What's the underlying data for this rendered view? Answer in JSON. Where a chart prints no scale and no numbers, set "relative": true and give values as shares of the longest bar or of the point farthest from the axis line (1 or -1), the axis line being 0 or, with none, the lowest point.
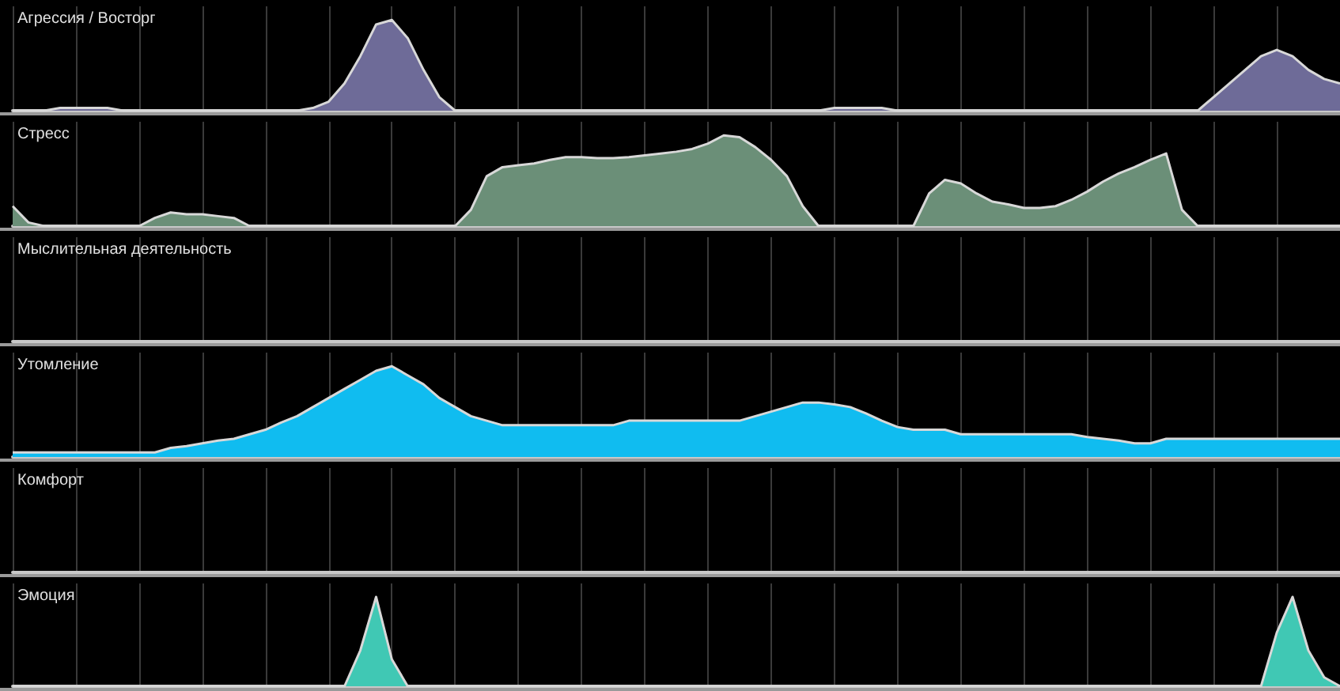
{
  "chart_data": [
    {
      "type": "area",
      "title": "Агрессия / Восторг",
      "relative": true,
      "grid": "x",
      "categories": [
        null,
        null,
        null,
        null,
        null,
        null,
        null,
        null,
        null,
        null,
        null,
        null,
        null,
        null,
        null,
        null,
        null,
        null,
        null,
        null,
        null,
        null,
        null,
        null,
        null,
        null,
        null,
        null,
        null,
        null,
        null,
        null,
        null,
        null,
        null,
        null,
        null,
        null,
        null,
        null,
        null,
        null,
        null,
        null,
        null,
        null,
        null,
        null,
        null,
        null,
        null,
        null,
        null,
        null,
        null,
        null,
        null,
        null,
        null,
        null,
        null,
        null,
        null,
        null,
        null,
        null,
        null,
        null,
        null,
        null,
        null,
        null,
        null,
        null,
        null,
        null,
        null,
        null,
        null,
        null,
        null,
        null,
        null,
        null,
        null
      ],
      "series": [
        {
          "color": "#6e6b98",
          "values": [
            0,
            0,
            0,
            0.03,
            0.03,
            0.03,
            0.03,
            0,
            0,
            0,
            0,
            0,
            0,
            0,
            0,
            0,
            0,
            0,
            0,
            0.03,
            0.1,
            0.3,
            0.6,
            0.95,
            1,
            0.8,
            0.45,
            0.15,
            0,
            0,
            0,
            0,
            0,
            0,
            0,
            0,
            0,
            0,
            0,
            0,
            0,
            0,
            0,
            0,
            0,
            0,
            0,
            0,
            0,
            0,
            0,
            0,
            0.03,
            0.03,
            0.03,
            0.03,
            0,
            0,
            0,
            0,
            0,
            0,
            0,
            0,
            0,
            0,
            0,
            0,
            0,
            0,
            0,
            0,
            0,
            0,
            0,
            0,
            0.15,
            0.3,
            0.45,
            0.6,
            0.67,
            0.6,
            0.45,
            0.35,
            0.3
          ]
        }
      ]
    },
    {
      "type": "area",
      "title": "Стресс",
      "relative": true,
      "grid": "x",
      "categories": [
        null,
        null,
        null,
        null,
        null,
        null,
        null,
        null,
        null,
        null,
        null,
        null,
        null,
        null,
        null,
        null,
        null,
        null,
        null,
        null,
        null,
        null,
        null,
        null,
        null,
        null,
        null,
        null,
        null,
        null,
        null,
        null,
        null,
        null,
        null,
        null,
        null,
        null,
        null,
        null,
        null,
        null,
        null,
        null,
        null,
        null,
        null,
        null,
        null,
        null,
        null,
        null,
        null,
        null,
        null,
        null,
        null,
        null,
        null,
        null,
        null,
        null,
        null,
        null,
        null,
        null,
        null,
        null,
        null,
        null,
        null,
        null,
        null,
        null,
        null,
        null,
        null,
        null,
        null,
        null,
        null,
        null,
        null,
        null,
        null
      ],
      "series": [
        {
          "color": "#6b8f78",
          "values": [
            0.22,
            0.04,
            0,
            0,
            0,
            0,
            0,
            0,
            0,
            0.09,
            0.15,
            0.13,
            0.13,
            0.11,
            0.09,
            0,
            0,
            0,
            0,
            0,
            0,
            0,
            0,
            0,
            0,
            0,
            0,
            0,
            0,
            0.18,
            0.55,
            0.65,
            0.67,
            0.69,
            0.73,
            0.76,
            0.76,
            0.75,
            0.75,
            0.76,
            0.78,
            0.8,
            0.82,
            0.85,
            0.91,
            1,
            0.98,
            0.87,
            0.73,
            0.55,
            0.22,
            0,
            0,
            0,
            0,
            0,
            0,
            0,
            0.36,
            0.51,
            0.47,
            0.36,
            0.27,
            0.24,
            0.2,
            0.2,
            0.22,
            0.29,
            0.38,
            0.49,
            0.58,
            0.65,
            0.73,
            0.8,
            0.18,
            0,
            0,
            0,
            0,
            0,
            0,
            0,
            0,
            0,
            0
          ]
        }
      ]
    },
    {
      "type": "other",
      "title": "Мыслительная деятельность"
    },
    {
      "type": "area",
      "title": "Утомление",
      "relative": true,
      "grid": "x",
      "categories": [
        null,
        null,
        null,
        null,
        null,
        null,
        null,
        null,
        null,
        null,
        null,
        null,
        null,
        null,
        null,
        null,
        null,
        null,
        null,
        null,
        null,
        null,
        null,
        null,
        null,
        null,
        null,
        null,
        null,
        null,
        null,
        null,
        null,
        null,
        null,
        null,
        null,
        null,
        null,
        null,
        null,
        null,
        null,
        null,
        null,
        null,
        null,
        null,
        null,
        null,
        null,
        null,
        null,
        null,
        null,
        null,
        null,
        null,
        null,
        null,
        null,
        null,
        null,
        null,
        null,
        null,
        null,
        null,
        null,
        null,
        null,
        null,
        null,
        null,
        null,
        null,
        null,
        null,
        null,
        null,
        null,
        null,
        null,
        null,
        null
      ],
      "series": [
        {
          "color": "#10bcf0",
          "values": [
            0.05,
            0.05,
            0.05,
            0.05,
            0.05,
            0.05,
            0.05,
            0.05,
            0.05,
            0.05,
            0.1,
            0.12,
            0.15,
            0.18,
            0.2,
            0.25,
            0.3,
            0.38,
            0.45,
            0.55,
            0.65,
            0.75,
            0.85,
            0.95,
            1,
            0.9,
            0.8,
            0.65,
            0.55,
            0.45,
            0.4,
            0.35,
            0.35,
            0.35,
            0.35,
            0.35,
            0.35,
            0.35,
            0.35,
            0.4,
            0.4,
            0.4,
            0.4,
            0.4,
            0.4,
            0.4,
            0.4,
            0.45,
            0.5,
            0.55,
            0.6,
            0.6,
            0.58,
            0.55,
            0.48,
            0.4,
            0.33,
            0.3,
            0.3,
            0.3,
            0.25,
            0.25,
            0.25,
            0.25,
            0.25,
            0.25,
            0.25,
            0.25,
            0.22,
            0.2,
            0.18,
            0.15,
            0.15,
            0.2,
            0.2,
            0.2,
            0.2,
            0.2,
            0.2,
            0.2,
            0.2,
            0.2,
            0.2,
            0.2,
            0.2
          ]
        }
      ]
    },
    {
      "type": "other",
      "title": "Комфорт"
    },
    {
      "type": "area",
      "title": "Эмоция",
      "relative": true,
      "grid": "x",
      "categories": [
        null,
        null,
        null,
        null,
        null,
        null,
        null,
        null,
        null,
        null,
        null,
        null,
        null,
        null,
        null,
        null,
        null,
        null,
        null,
        null,
        null,
        null,
        null,
        null,
        null,
        null,
        null,
        null,
        null,
        null,
        null,
        null,
        null,
        null,
        null,
        null,
        null,
        null,
        null,
        null,
        null,
        null,
        null,
        null,
        null,
        null,
        null,
        null,
        null,
        null,
        null,
        null,
        null,
        null,
        null,
        null,
        null,
        null,
        null,
        null,
        null,
        null,
        null,
        null,
        null,
        null,
        null,
        null,
        null,
        null,
        null,
        null,
        null,
        null,
        null,
        null,
        null,
        null,
        null,
        null,
        null,
        null,
        null,
        null,
        null
      ],
      "series": [
        {
          "color": "#40c8b4",
          "values": [
            0,
            0,
            0,
            0,
            0,
            0,
            0,
            0,
            0,
            0,
            0,
            0,
            0,
            0,
            0,
            0,
            0,
            0,
            0,
            0,
            0,
            0,
            0.4,
            1,
            0.3,
            0,
            0,
            0,
            0,
            0,
            0,
            0,
            0,
            0,
            0,
            0,
            0,
            0,
            0,
            0,
            0,
            0,
            0,
            0,
            0,
            0,
            0,
            0,
            0,
            0,
            0,
            0,
            0,
            0,
            0,
            0,
            0,
            0,
            0,
            0,
            0,
            0,
            0,
            0,
            0,
            0,
            0,
            0,
            0,
            0,
            0,
            0,
            0,
            0,
            0,
            0,
            0,
            0,
            0,
            0,
            0.6,
            1,
            0.4,
            0.1,
            0
          ]
        }
      ]
    }
  ]
}
